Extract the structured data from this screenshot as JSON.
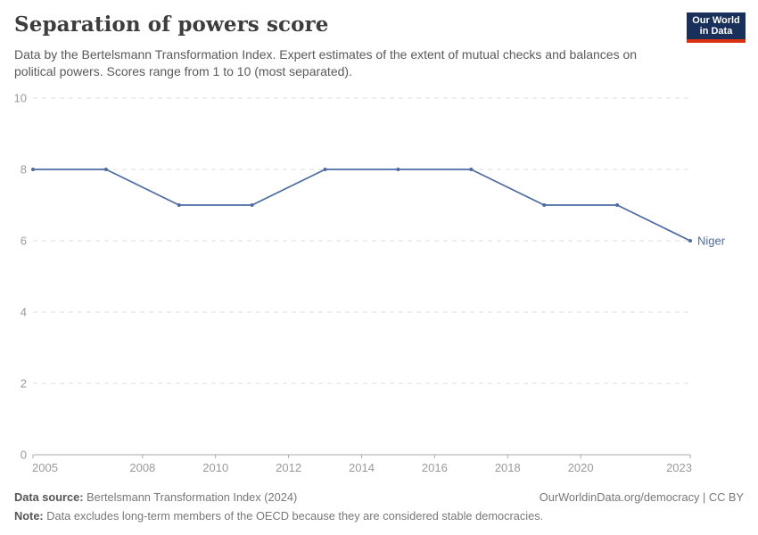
{
  "header": {
    "title": "Separation of powers score",
    "subtitle": "Data by the Bertelsmann Transformation Index. Expert estimates of the extent of mutual checks and balances on political powers. Scores range from 1 to 10 (most separated).",
    "logo": {
      "line1": "Our World",
      "line2": "in Data",
      "bg_color": "#18305a",
      "stripe_color": "#dc3012"
    }
  },
  "chart_data": {
    "type": "line",
    "title": "Separation of powers score",
    "xlabel": "",
    "ylabel": "",
    "xlim": [
      2005,
      2023
    ],
    "ylim": [
      0,
      10
    ],
    "x_ticks": [
      2005,
      2008,
      2010,
      2012,
      2014,
      2016,
      2018,
      2020,
      2023
    ],
    "y_ticks": [
      0,
      2,
      4,
      6,
      8,
      10
    ],
    "grid": "horizontal-dashed",
    "legend_position": "end-of-line-label",
    "series": [
      {
        "name": "Niger",
        "color": "#4c6ba5",
        "x": [
          2005,
          2007,
          2009,
          2011,
          2013,
          2015,
          2017,
          2019,
          2021,
          2023
        ],
        "values": [
          8,
          8,
          7,
          7,
          8,
          8,
          8,
          7,
          7,
          6
        ]
      }
    ],
    "axis_color": "#a8a8a8",
    "gridline_color": "#dcdcdc",
    "tick_label_color": "#9a9a9a"
  },
  "footer": {
    "source_label": "Data source:",
    "source_value": " Bertelsmann Transformation Index (2024)",
    "rights": "OurWorldinData.org/democracy | CC BY",
    "note_label": "Note:",
    "note_value": " Data excludes long-term members of the OECD because they are considered stable democracies."
  }
}
